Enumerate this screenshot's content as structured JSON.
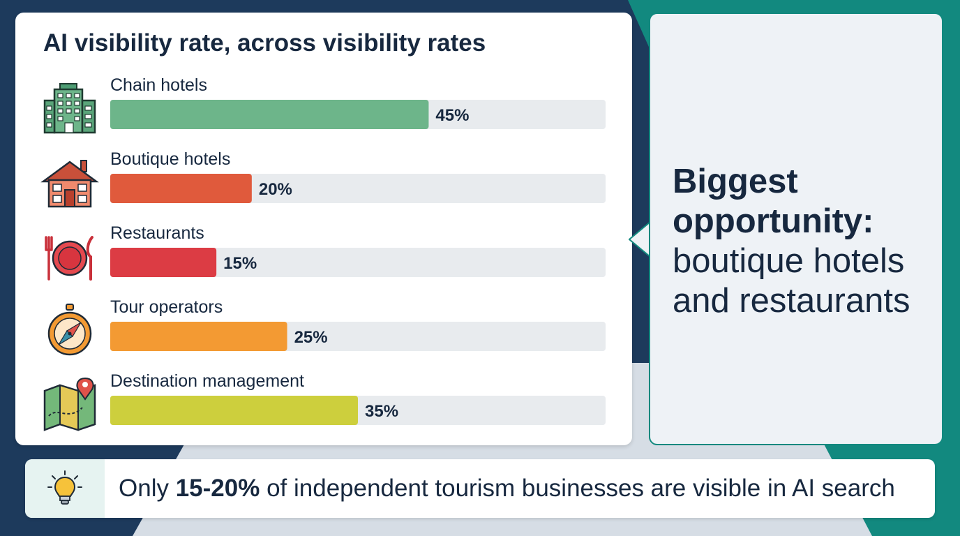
{
  "chart_data": {
    "type": "bar",
    "orientation": "horizontal",
    "title": "AI visibility rate, across visibility rates",
    "categories": [
      "Chain hotels",
      "Boutique hotels",
      "Restaurants",
      "Tour operators",
      "Destination management"
    ],
    "values": [
      45,
      20,
      15,
      25,
      35
    ],
    "value_labels": [
      "45%",
      "20%",
      "15%",
      "25%",
      "35%"
    ],
    "colors": [
      "#6db58a",
      "#e05a3c",
      "#dc3c44",
      "#f39a33",
      "#cdcf3d"
    ],
    "icons": [
      "hotel-building-icon",
      "house-icon",
      "plate-cutlery-icon",
      "compass-icon",
      "map-pin-icon"
    ],
    "xlim": [
      0,
      100
    ],
    "xlabel": "",
    "ylabel": "",
    "grid": false,
    "legend": "none"
  },
  "callout": {
    "line1": "Biggest",
    "line2": "opportunity:",
    "line3": "boutique hotels",
    "line4": "and restaurants"
  },
  "footer": {
    "icon": "lightbulb-icon",
    "prefix": "Only ",
    "highlight": "15-20%",
    "suffix": " of independent tourism businesses are visible in AI search"
  },
  "colors": {
    "navy": "#1d3a5c",
    "teal": "#12897f",
    "text": "#17283f",
    "track": "#e8ebee"
  }
}
